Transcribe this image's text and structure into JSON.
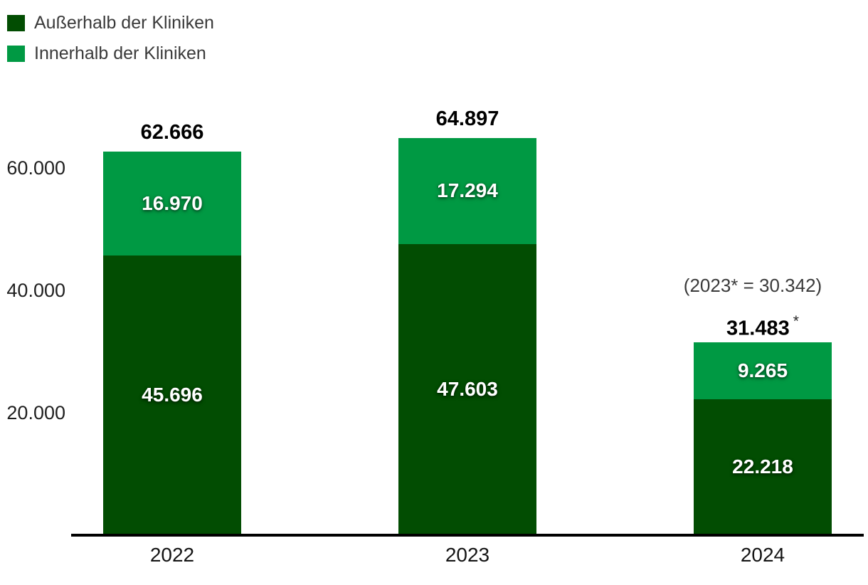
{
  "chart_data": {
    "type": "bar",
    "stacked": true,
    "grid": false,
    "legend_position": "top-left",
    "categories": [
      "2022",
      "2023",
      "2024"
    ],
    "series": [
      {
        "name": "Außerhalb der Kliniken",
        "color": "#024D02",
        "values": [
          45696,
          47603,
          22218
        ],
        "value_labels": [
          "45.696",
          "47.603",
          "22.218"
        ]
      },
      {
        "name": "Innerhalb der Kliniken",
        "color": "#009943",
        "values": [
          16970,
          17294,
          9265
        ],
        "value_labels": [
          "16.970",
          "17.294",
          "9.265"
        ]
      }
    ],
    "totals": [
      62666,
      64897,
      31483
    ],
    "total_labels": [
      "62.666",
      "64.897",
      "31.483"
    ],
    "total_suffixes": [
      "",
      "",
      "*"
    ],
    "annotation": {
      "text": "(2023* = 30.342)",
      "category": "2024"
    },
    "y_ticks": [
      {
        "value": 20000,
        "label": "20.000"
      },
      {
        "value": 40000,
        "label": "40.000"
      },
      {
        "value": 60000,
        "label": "60.000"
      }
    ],
    "ylim": [
      0,
      68000
    ],
    "xlabel": "",
    "ylabel": ""
  }
}
